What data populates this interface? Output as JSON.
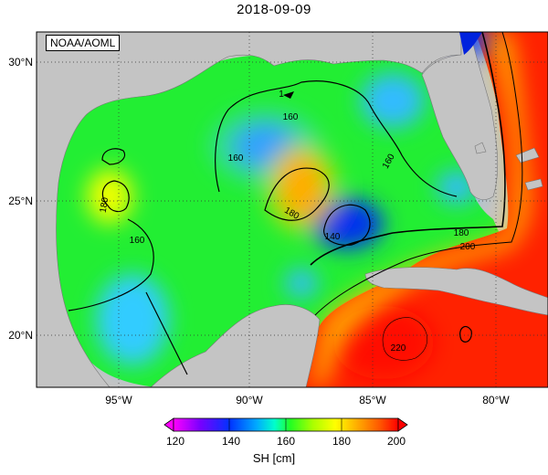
{
  "title": "2018-09-09",
  "credit": "NOAA/AOML",
  "axes": {
    "lon_ticks": [
      "95°W",
      "90°W",
      "85°W",
      "80°W"
    ],
    "lat_ticks": [
      "30°N",
      "25°N",
      "20°N"
    ],
    "lon_range": [
      -98,
      -78
    ],
    "lat_range": [
      18,
      31
    ]
  },
  "contour_labels": [
    "160",
    "160",
    "160",
    "160",
    "180",
    "180",
    "180",
    "200",
    "140",
    "220",
    "1"
  ],
  "colorbar": {
    "label": "SH [cm]",
    "ticks": [
      "120",
      "140",
      "160",
      "180",
      "200"
    ],
    "range": [
      120,
      200
    ],
    "colors": [
      "#ff00ff",
      "#5500ff",
      "#0044ff",
      "#00aaff",
      "#00ffd0",
      "#22ff22",
      "#aaff00",
      "#ffff00",
      "#ffaa00",
      "#ff5500",
      "#ff0000"
    ]
  }
}
